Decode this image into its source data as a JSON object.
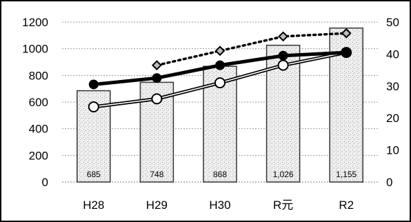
{
  "chart_data": {
    "type": "bar",
    "categories": [
      "H28",
      "H29",
      "H30",
      "R元",
      "R2"
    ],
    "values": [
      685,
      748,
      868,
      1026,
      1155
    ],
    "value_labels": [
      "685",
      "748",
      "868",
      "1,026",
      "1,155"
    ],
    "ylim": [
      0,
      1200
    ],
    "y_ticks": [
      0,
      200,
      400,
      600,
      800,
      1000,
      1200
    ],
    "y2lim": [
      0,
      50
    ],
    "y2_ticks": [
      0,
      10,
      20,
      30,
      40,
      50
    ],
    "grid": true,
    "line_series": [
      {
        "style": "dotted-diamond",
        "values": [
          null,
          36.5,
          41.0,
          45.5,
          46.5
        ]
      },
      {
        "style": "thick-solid-filled",
        "values": [
          30.5,
          32.5,
          36.5,
          39.5,
          40.5
        ]
      },
      {
        "style": "hollow-circle",
        "values": [
          23.5,
          26.0,
          31.0,
          36.5,
          40.5
        ]
      }
    ],
    "colors": {
      "bar_fill": "#e6e6e6",
      "bar_edge": "#333333",
      "line": "#000000",
      "diamond_fill": "#bdbdbd"
    }
  }
}
